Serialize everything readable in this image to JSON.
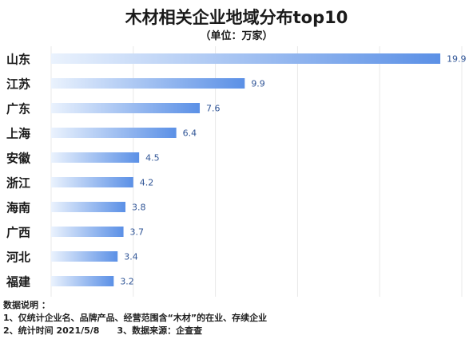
{
  "chart_data": {
    "type": "bar",
    "orientation": "horizontal",
    "title": "木材相关企业地域分布top10",
    "subtitle": "（单位：万家）",
    "categories": [
      "山东",
      "江苏",
      "广东",
      "上海",
      "安徽",
      "浙江",
      "海南",
      "广西",
      "河北",
      "福建"
    ],
    "values": [
      19.9,
      9.9,
      7.6,
      6.4,
      4.5,
      4.2,
      3.8,
      3.7,
      3.4,
      3.2
    ],
    "value_labels": [
      "19.9",
      "9.9",
      "7.6",
      "6.4",
      "4.5",
      "4.2",
      "3.8",
      "3.7",
      "3.4",
      "3.2"
    ],
    "xlim": [
      0,
      21
    ],
    "grid": "vertical",
    "legend": "none",
    "colors": {
      "bar_start": "#eaf2fd",
      "bar_end": "#5b90e6",
      "value_label": "#2f5496",
      "grid": "#e8e8e8"
    }
  },
  "notes": {
    "heading": "数据说明 ：",
    "line1": "1、仅统计企业名、品牌产品、经营范围含“木材”的在业、存续企业",
    "line2_a": "2、统计时间  2021/5/8",
    "line2_b": "3、数据来源：企查查"
  }
}
